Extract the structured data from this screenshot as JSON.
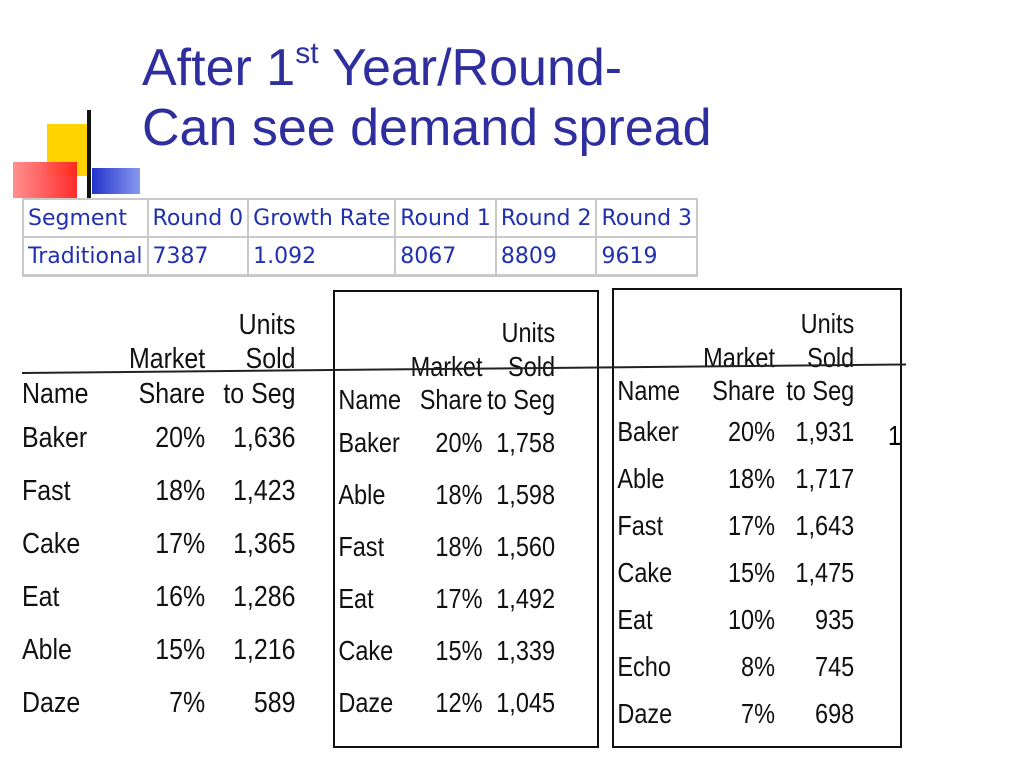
{
  "title": {
    "line1_pre": "After 1",
    "line1_sup": "st",
    "line1_post": " Year/Round-",
    "line2": "Can see demand spread"
  },
  "segment_table": {
    "headers": [
      "Segment",
      "Round 0",
      "Growth Rate",
      "Round 1",
      "Round 2",
      "Round 3"
    ],
    "row": [
      "Traditional",
      "7387",
      "1.092",
      "8067",
      "8809",
      "9619"
    ]
  },
  "round_tables": [
    {
      "header": {
        "units_line1": "Units",
        "units_line2": "Sold",
        "units_line3": "to Seg",
        "market_line1": "Market",
        "market_line2": "Share",
        "name": "Name"
      },
      "rows": [
        {
          "name": "Baker",
          "share": "20%",
          "units": "1,636"
        },
        {
          "name": "Fast",
          "share": "18%",
          "units": "1,423"
        },
        {
          "name": "Cake",
          "share": "17%",
          "units": "1,365"
        },
        {
          "name": "Eat",
          "share": "16%",
          "units": "1,286"
        },
        {
          "name": "Able",
          "share": "15%",
          "units": "1,216"
        },
        {
          "name": "Daze",
          "share": "7%",
          "units": "589"
        }
      ]
    },
    {
      "header": {
        "units_line1": "Units",
        "units_line2": "Sold",
        "units_line3": "to Seg",
        "market_line1": "Market",
        "market_line2": "Share",
        "name": "Name"
      },
      "rows": [
        {
          "name": "Baker",
          "share": "20%",
          "units": "1,758"
        },
        {
          "name": "Able",
          "share": "18%",
          "units": "1,598"
        },
        {
          "name": "Fast",
          "share": "18%",
          "units": "1,560"
        },
        {
          "name": "Eat",
          "share": "17%",
          "units": "1,492"
        },
        {
          "name": "Cake",
          "share": "15%",
          "units": "1,339"
        },
        {
          "name": "Daze",
          "share": "12%",
          "units": "1,045"
        }
      ]
    },
    {
      "header": {
        "units_line1": "Units",
        "units_line2": "Sold",
        "units_line3": "to Seg",
        "market_line1": "Market",
        "market_line2": "Share",
        "name": "Name"
      },
      "rows": [
        {
          "name": "Baker",
          "share": "20%",
          "units": "1,931"
        },
        {
          "name": "Able",
          "share": "18%",
          "units": "1,717"
        },
        {
          "name": "Fast",
          "share": "17%",
          "units": "1,643"
        },
        {
          "name": "Cake",
          "share": "15%",
          "units": "1,475"
        },
        {
          "name": "Eat",
          "share": "10%",
          "units": "935"
        },
        {
          "name": "Echo",
          "share": "8%",
          "units": "745"
        },
        {
          "name": "Daze",
          "share": "7%",
          "units": "698"
        }
      ],
      "stray_text": "1"
    }
  ],
  "logo_icon": "colored-squares-logo"
}
